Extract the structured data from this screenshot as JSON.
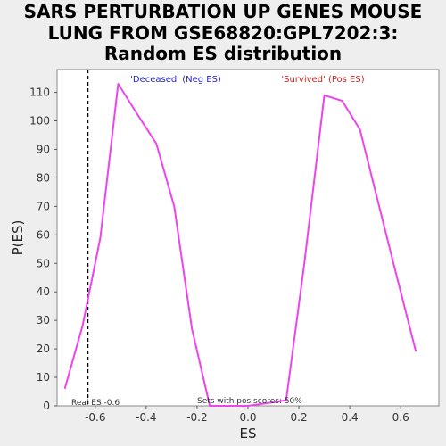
{
  "title_lines": [
    "SARS PERTURBATION UP GENES MOUSE",
    "LUNG FROM GSE68820:GPL7202:3:",
    "Random ES distribution"
  ],
  "chart_data": {
    "type": "line",
    "title": "SARS PERTURBATION UP GENES MOUSE LUNG FROM GSE68820:GPL7202:3: Random ES distribution",
    "xlabel": "ES",
    "ylabel": "P(ES)",
    "xlim": [
      -0.75,
      0.75
    ],
    "ylim": [
      0,
      118
    ],
    "xticks": [
      -0.6,
      -0.4,
      -0.2,
      0.0,
      0.2,
      0.4,
      0.6
    ],
    "xtick_labels": [
      "-0.6",
      "-0.4",
      "-0.2",
      "0.0",
      "0.2",
      "0.4",
      "0.6"
    ],
    "yticks": [
      0,
      10,
      20,
      30,
      40,
      50,
      60,
      70,
      80,
      90,
      100,
      110
    ],
    "ytick_labels": [
      "0",
      "10",
      "20",
      "30",
      "40",
      "50",
      "60",
      "70",
      "80",
      "90",
      "100",
      "110"
    ],
    "grid": false,
    "series": [
      {
        "color": "#ee44ee",
        "x": [
          -0.72,
          -0.65,
          -0.58,
          -0.51,
          -0.44,
          -0.36,
          -0.29,
          -0.22,
          -0.15,
          -0.08,
          0.0,
          0.08,
          0.15,
          0.22,
          0.3,
          0.37,
          0.44,
          0.51,
          0.58,
          0.66
        ],
        "y": [
          6,
          28,
          59,
          113,
          103,
          92,
          70,
          27,
          0,
          0,
          0,
          1,
          2,
          49,
          109,
          107,
          97,
          72,
          47,
          19
        ]
      }
    ],
    "real_es": -0.63,
    "annotations": {
      "neg_header": "'Deceased' (Neg ES)",
      "pos_header": "'Survived' (Pos ES)",
      "real_es_label": "Real ES -0.6",
      "pos_scores_note": "Sets with pos scores: 50%"
    },
    "colors": {
      "curve": "#ee44ee",
      "neg_header": "#2222cc",
      "pos_header": "#cc2222",
      "real_es_line": "#000000"
    }
  }
}
